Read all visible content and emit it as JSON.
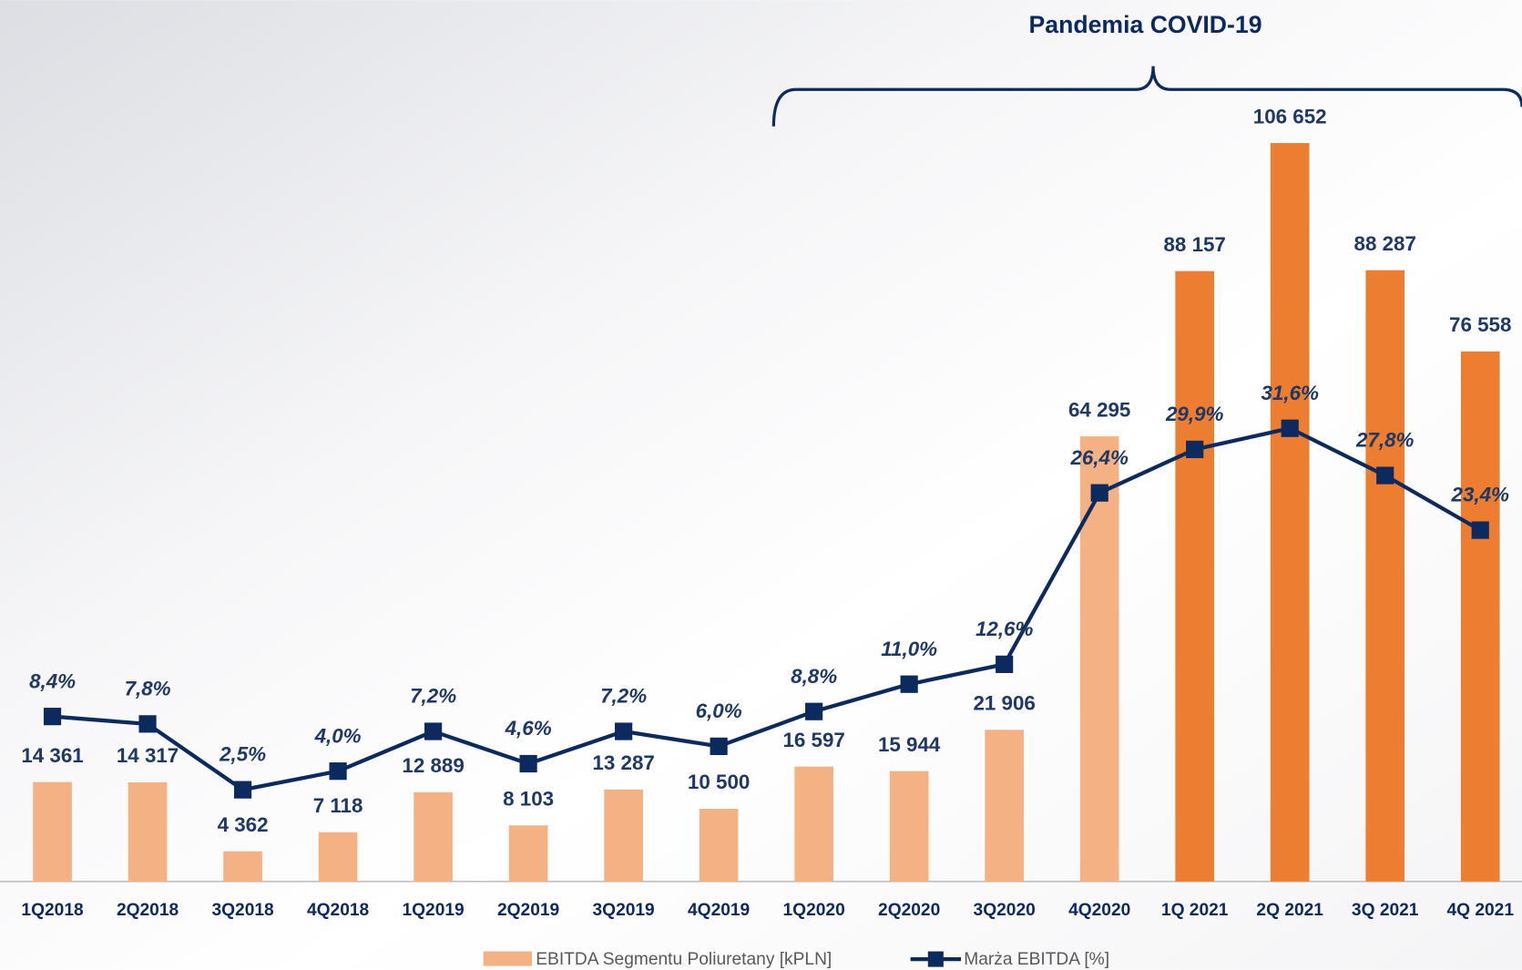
{
  "chart_data": {
    "type": "bar-line",
    "annotation": "Pandemia COVID-19",
    "categories": [
      "1Q2018",
      "2Q2018",
      "3Q2018",
      "4Q2018",
      "1Q2019",
      "2Q2019",
      "3Q2019",
      "4Q2019",
      "1Q2020",
      "2Q2020",
      "3Q2020",
      "4Q2020",
      "1Q 2021",
      "2Q 2021",
      "3Q 2021",
      "4Q 2021"
    ],
    "series": [
      {
        "name": "EBITDA Segmentu Poliuretany [kPLN]",
        "type": "bar",
        "color": "#f4b183",
        "colors": [
          "#f4b183",
          "#f4b183",
          "#f4b183",
          "#f4b183",
          "#f4b183",
          "#f4b183",
          "#f4b183",
          "#f4b183",
          "#f4b183",
          "#f4b183",
          "#f4b183",
          "#f4b183",
          "#ed7d31",
          "#ed7d31",
          "#ed7d31",
          "#ed7d31"
        ],
        "values": [
          14361,
          14317,
          4362,
          7118,
          12889,
          8103,
          13287,
          10500,
          16597,
          15944,
          21906,
          64295,
          88157,
          106652,
          88287,
          76558
        ],
        "value_labels": [
          "14 361",
          "14 317",
          "4 362",
          "7 118",
          "12 889",
          "8 103",
          "13 287",
          "10 500",
          "16 597",
          "15 944",
          "21 906",
          "64 295",
          "88 157",
          "106 652",
          "88 287",
          "76 558"
        ]
      },
      {
        "name": "Marża EBITDA [%]",
        "type": "line",
        "axis": "y2",
        "color": "#0d2a5f",
        "values": [
          8.4,
          7.8,
          2.5,
          4.0,
          7.2,
          4.6,
          7.2,
          6.0,
          8.8,
          11.0,
          12.6,
          26.4,
          29.9,
          31.6,
          27.8,
          23.4
        ],
        "value_labels": [
          "8,4%",
          "7,8%",
          "2,5%",
          "4,0%",
          "7,2%",
          "4,6%",
          "7,2%",
          "6,0%",
          "8,8%",
          "11,0%",
          "12,6%",
          "26,4%",
          "29,9%",
          "31,6%",
          "27,8%",
          "23,4%"
        ]
      }
    ],
    "ylim": [
      0,
      120000
    ],
    "y2lim": [
      0,
      62
    ]
  }
}
